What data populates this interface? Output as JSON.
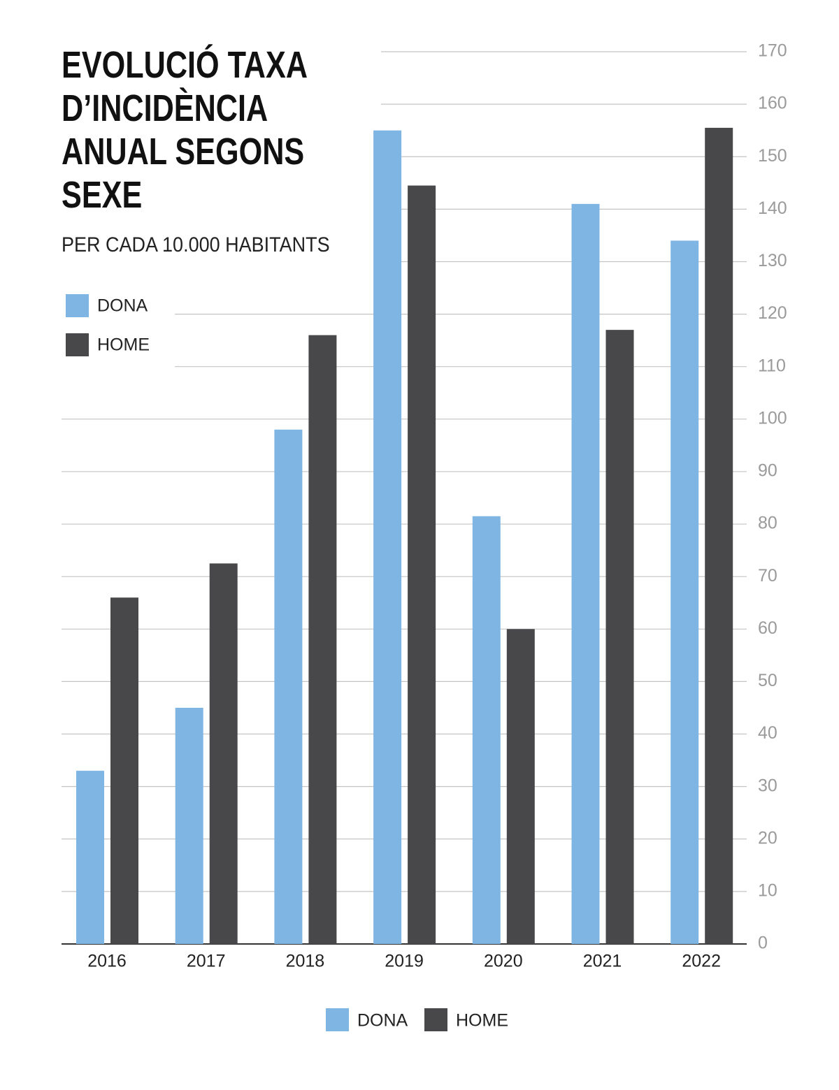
{
  "chart_data": {
    "type": "bar",
    "title": "EVOLUCIÓ TAXA D’INCIDÈNCIA ANUAL SEGONS SEXE",
    "subtitle": "PER CADA 10.000 HABITANTS",
    "categories": [
      "2016",
      "2017",
      "2018",
      "2019",
      "2020",
      "2021",
      "2022"
    ],
    "series": [
      {
        "name": "DONA",
        "color": "#7fb5e3",
        "values": [
          33,
          45,
          98,
          155,
          81.5,
          141,
          134
        ]
      },
      {
        "name": "HOME",
        "color": "#48484b",
        "values": [
          66,
          72.5,
          116,
          144.5,
          60,
          117,
          155.5
        ]
      }
    ],
    "ylim": [
      0,
      170
    ],
    "yticks": [
      0,
      10,
      20,
      30,
      40,
      50,
      60,
      70,
      80,
      90,
      100,
      110,
      120,
      130,
      140,
      150,
      160,
      170
    ],
    "grid": true
  }
}
